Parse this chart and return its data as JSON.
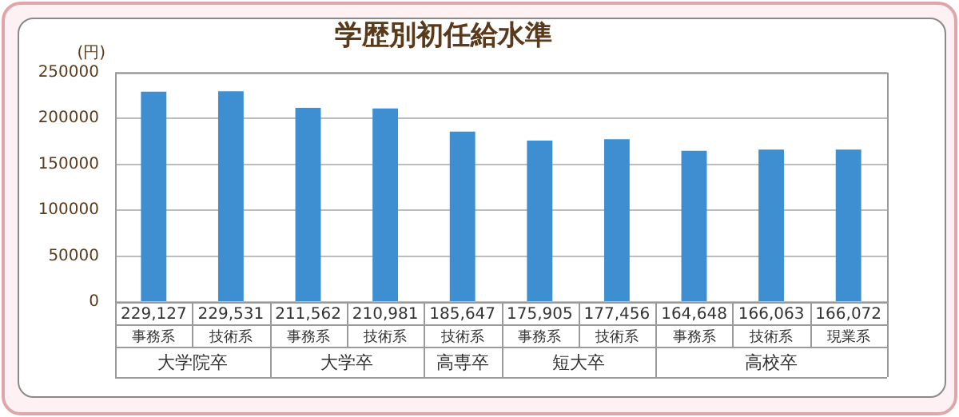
{
  "chart_data": {
    "type": "bar",
    "title": "学歴別初任給水準",
    "ylabel": "(円)",
    "categories": [
      "事務系",
      "技術系",
      "事務系",
      "技術系",
      "技術系",
      "事務系",
      "技術系",
      "事務系",
      "技術系",
      "現業系"
    ],
    "values": [
      229127,
      229531,
      211562,
      210981,
      185647,
      175905,
      177456,
      164648,
      166063,
      166072
    ],
    "value_labels": [
      "229,127",
      "229,531",
      "211,562",
      "210,981",
      "185,647",
      "175,905",
      "177,456",
      "164,648",
      "166,063",
      "166,072"
    ],
    "color": "#3d8fd2",
    "ylim": [
      0,
      250000
    ],
    "yticks": [
      0,
      50000,
      100000,
      150000,
      200000,
      250000
    ],
    "grid": "y",
    "legend": false,
    "annotations": [
      "大学院卒",
      "大学卒",
      "高専卒",
      "短大卒",
      "高校卒"
    ]
  }
}
